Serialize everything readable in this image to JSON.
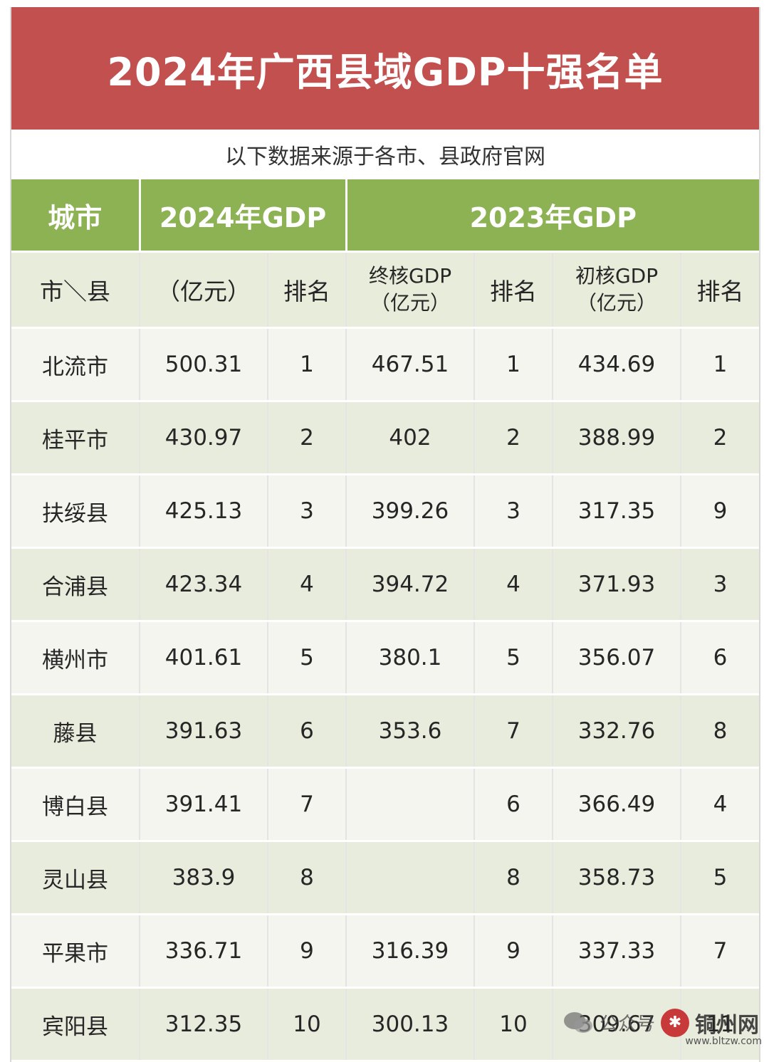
{
  "title": "2024年广西县域GDP十强名单",
  "source_note": "以下数据来源于各市、县政府官网",
  "header": {
    "city": "城市",
    "gdp2024": "2024年GDP",
    "gdp2023": "2023年GDP",
    "sub_city": "市＼县",
    "sub_unit": "（亿元）",
    "sub_rank": "排名",
    "final_line1": "终核GDP",
    "final_line2": "（亿元）",
    "prelim_line1": "初核GDP",
    "prelim_line2": "（亿元）"
  },
  "rows": [
    {
      "city": "北流市",
      "gdp2024": "500.31",
      "rank2024": "1",
      "final2023": "467.51",
      "final_rank": "1",
      "prelim2023": "434.69",
      "prelim_rank": "1"
    },
    {
      "city": "桂平市",
      "gdp2024": "430.97",
      "rank2024": "2",
      "final2023": "402",
      "final_rank": "2",
      "prelim2023": "388.99",
      "prelim_rank": "2"
    },
    {
      "city": "扶绥县",
      "gdp2024": "425.13",
      "rank2024": "3",
      "final2023": "399.26",
      "final_rank": "3",
      "prelim2023": "317.35",
      "prelim_rank": "9"
    },
    {
      "city": "合浦县",
      "gdp2024": "423.34",
      "rank2024": "4",
      "final2023": "394.72",
      "final_rank": "4",
      "prelim2023": "371.93",
      "prelim_rank": "3"
    },
    {
      "city": "横州市",
      "gdp2024": "401.61",
      "rank2024": "5",
      "final2023": "380.1",
      "final_rank": "5",
      "prelim2023": "356.07",
      "prelim_rank": "6"
    },
    {
      "city": "藤县",
      "gdp2024": "391.63",
      "rank2024": "6",
      "final2023": "353.6",
      "final_rank": "7",
      "prelim2023": "332.76",
      "prelim_rank": "8"
    },
    {
      "city": "博白县",
      "gdp2024": "391.41",
      "rank2024": "7",
      "final2023": "",
      "final_rank": "6",
      "prelim2023": "366.49",
      "prelim_rank": "4"
    },
    {
      "city": "灵山县",
      "gdp2024": "383.9",
      "rank2024": "8",
      "final2023": "",
      "final_rank": "8",
      "prelim2023": "358.73",
      "prelim_rank": "5"
    },
    {
      "city": "平果市",
      "gdp2024": "336.71",
      "rank2024": "9",
      "final2023": "316.39",
      "final_rank": "9",
      "prelim2023": "337.33",
      "prelim_rank": "7"
    },
    {
      "city": "宾阳县",
      "gdp2024": "312.35",
      "rank2024": "10",
      "final2023": "300.13",
      "final_rank": "10",
      "prelim2023": "309.67",
      "prelim_rank": "11"
    }
  ],
  "watermark": {
    "label": "公众号",
    "site": "铜州网",
    "url": "www.bltzw.com"
  },
  "colors": {
    "title_bg": "#c1504f",
    "header_bg": "#8db253",
    "row_light": "#f3f5ee",
    "row_dark": "#e8ecdd"
  }
}
